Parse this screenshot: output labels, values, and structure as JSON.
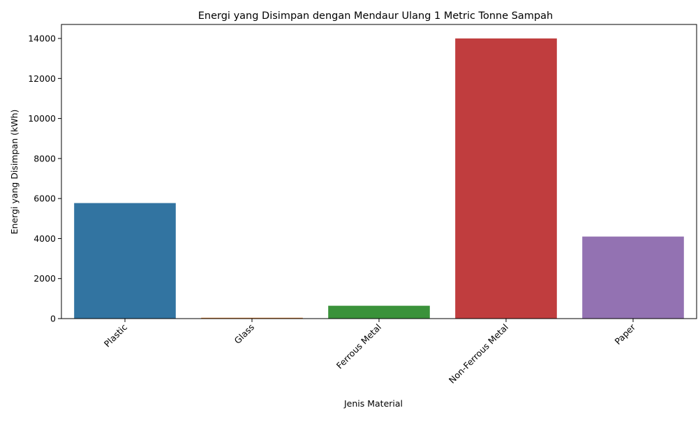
{
  "chart_data": {
    "type": "bar",
    "title": "Energi yang Disimpan dengan Mendaur Ulang 1 Metric Tonne Sampah",
    "xlabel": "Jenis Material",
    "ylabel": "Energi yang Disimpan (kWh)",
    "categories": [
      "Plastic",
      "Glass",
      "Ferrous Metal",
      "Non-Ferrous Metal",
      "Paper"
    ],
    "values": [
      5774,
      42,
      642,
      14000,
      4100
    ],
    "colors": [
      "#3274a1",
      "#e1812c",
      "#3a923a",
      "#c03d3e",
      "#9372b2"
    ],
    "ylim": [
      0,
      14700
    ],
    "yticks": [
      0,
      2000,
      4000,
      6000,
      8000,
      10000,
      12000,
      14000
    ],
    "grid": false,
    "legend": "none"
  }
}
